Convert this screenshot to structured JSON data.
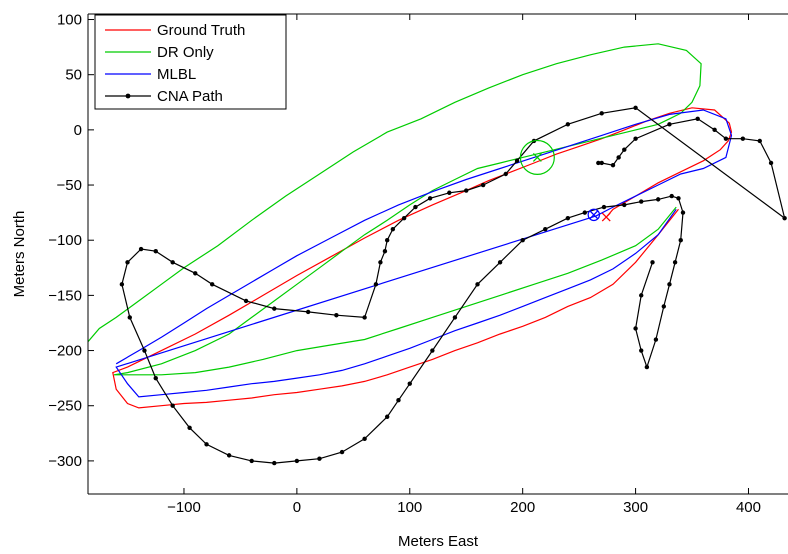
{
  "chart_data": {
    "type": "line",
    "xlabel": "Meters East",
    "ylabel": "Meters North",
    "xlim": [
      -185,
      435
    ],
    "ylim": [
      -330,
      105
    ],
    "xticks": [
      -100,
      0,
      100,
      200,
      300,
      400
    ],
    "xtick_labels": [
      "−100",
      "0",
      "100",
      "200",
      "300",
      "400"
    ],
    "yticks": [
      100,
      50,
      0,
      -50,
      -100,
      -150,
      -200,
      -250,
      -300
    ],
    "ytick_labels": [
      "100",
      "50",
      "0",
      "−50",
      "−100",
      "−150",
      "−200",
      "−250",
      "−300"
    ],
    "grid": false,
    "legend_position": "top-left",
    "series": [
      {
        "name": "Ground Truth",
        "color": "#ff0000",
        "marker": "none",
        "x": [
          275,
          280,
          300,
          320,
          340,
          360,
          375,
          382,
          385,
          383,
          370,
          350,
          330,
          310,
          290,
          270,
          250,
          230,
          210,
          190,
          170,
          150,
          120,
          90,
          60,
          30,
          0,
          -30,
          -60,
          -90,
          -120,
          -150,
          -163,
          -160,
          -150,
          -140,
          -120,
          -100,
          -80,
          -60,
          -40,
          -20,
          0,
          20,
          40,
          60,
          80,
          100,
          120,
          140,
          160,
          180,
          200,
          220,
          240,
          260,
          280,
          300,
          320,
          338
        ],
        "y": [
          -78,
          -72,
          -60,
          -48,
          -38,
          -28,
          -18,
          -10,
          -2,
          6,
          18,
          20,
          15,
          8,
          0,
          -8,
          -15,
          -22,
          -30,
          -38,
          -46,
          -55,
          -68,
          -82,
          -98,
          -115,
          -132,
          -150,
          -168,
          -185,
          -200,
          -215,
          -220,
          -235,
          -248,
          -252,
          -250,
          -248,
          -247,
          -245,
          -243,
          -240,
          -238,
          -235,
          -232,
          -228,
          -222,
          -215,
          -208,
          -200,
          -193,
          -185,
          -178,
          -170,
          -160,
          -152,
          -140,
          -120,
          -95,
          -72
        ]
      },
      {
        "name": "DR Only",
        "color": "#00cc00",
        "marker": "none",
        "x": [
          -185,
          -175,
          -160,
          -140,
          -120,
          -100,
          -70,
          -40,
          -10,
          20,
          50,
          80,
          110,
          140,
          170,
          200,
          230,
          260,
          290,
          320,
          345,
          358,
          357,
          350,
          340,
          330,
          320,
          300,
          280,
          260,
          240,
          220,
          200,
          180,
          160,
          140,
          120,
          100,
          80,
          60,
          40,
          20,
          0,
          -20,
          -40,
          -60,
          -90,
          -120,
          -150,
          -162,
          -150,
          -120,
          -90,
          -60,
          -30,
          0,
          30,
          60,
          90,
          120,
          150,
          180,
          210,
          240,
          270,
          300,
          320,
          336
        ],
        "y": [
          -192,
          -180,
          -170,
          -155,
          -140,
          -125,
          -105,
          -82,
          -60,
          -40,
          -20,
          -2,
          10,
          25,
          38,
          50,
          60,
          68,
          75,
          78,
          72,
          60,
          40,
          25,
          15,
          10,
          5,
          0,
          -5,
          -10,
          -15,
          -20,
          -25,
          -30,
          -35,
          -45,
          -55,
          -68,
          -82,
          -95,
          -110,
          -125,
          -140,
          -155,
          -170,
          -185,
          -200,
          -212,
          -220,
          -222,
          -222,
          -222,
          -220,
          -215,
          -208,
          -200,
          -195,
          -190,
          -180,
          -170,
          -160,
          -150,
          -140,
          -130,
          -118,
          -105,
          -90,
          -70
        ]
      },
      {
        "name": "MLBL",
        "color": "#0000ff",
        "marker": "none",
        "x": [
          -160,
          -140,
          -120,
          -100,
          -80,
          -60,
          -40,
          -20,
          0,
          30,
          60,
          90,
          120,
          150,
          180,
          210,
          240,
          270,
          300,
          330,
          360,
          380,
          385,
          380,
          360,
          340,
          320,
          300,
          280,
          265,
          -160,
          -150,
          -140,
          -120,
          -100,
          -80,
          -60,
          -40,
          -20,
          0,
          20,
          40,
          60,
          80,
          100,
          120,
          140,
          160,
          180,
          200,
          220,
          240,
          260,
          280,
          300,
          320,
          336
        ],
        "y": [
          -212,
          -200,
          -188,
          -175,
          -162,
          -150,
          -138,
          -126,
          -114,
          -98,
          -82,
          -68,
          -56,
          -45,
          -35,
          -25,
          -15,
          -5,
          5,
          14,
          18,
          10,
          -5,
          -25,
          -35,
          -40,
          -50,
          -60,
          -70,
          -78,
          -215,
          -230,
          -242,
          -240,
          -238,
          -236,
          -233,
          -230,
          -228,
          -225,
          -222,
          -218,
          -212,
          -205,
          -198,
          -190,
          -182,
          -175,
          -168,
          -160,
          -152,
          -144,
          -136,
          -126,
          -112,
          -95,
          -72
        ]
      },
      {
        "name": "CNA Path",
        "color": "#000000",
        "marker": "dot",
        "x": [
          267,
          270,
          280,
          285,
          290,
          300,
          330,
          355,
          370,
          380,
          395,
          410,
          420,
          432,
          300,
          270,
          240,
          210,
          195,
          185,
          165,
          150,
          135,
          118,
          105,
          95,
          85,
          80,
          78,
          74,
          70,
          60,
          35,
          10,
          -20,
          -45,
          -75,
          -90,
          -110,
          -125,
          -138,
          -150,
          -155,
          -148,
          -135,
          -125,
          -110,
          -95,
          -80,
          -60,
          -40,
          -20,
          0,
          20,
          40,
          60,
          80,
          90,
          100,
          120,
          140,
          160,
          180,
          200,
          220,
          240,
          255,
          272,
          290,
          305,
          320,
          332,
          338,
          342,
          340,
          335,
          330,
          325,
          318,
          310,
          305,
          300,
          305,
          315
        ],
        "y": [
          -30,
          -30,
          -32,
          -25,
          -18,
          -8,
          5,
          10,
          0,
          -8,
          -8,
          -10,
          -30,
          -80,
          20,
          15,
          5,
          -10,
          -28,
          -40,
          -50,
          -55,
          -57,
          -62,
          -70,
          -80,
          -90,
          -100,
          -110,
          -120,
          -140,
          -170,
          -168,
          -165,
          -162,
          -155,
          -140,
          -130,
          -120,
          -110,
          -108,
          -120,
          -140,
          -170,
          -200,
          -225,
          -250,
          -270,
          -285,
          -295,
          -300,
          -302,
          -300,
          -298,
          -292,
          -280,
          -260,
          -245,
          -230,
          -200,
          -170,
          -140,
          -120,
          -100,
          -90,
          -80,
          -75,
          -70,
          -68,
          -65,
          -63,
          -60,
          -62,
          -75,
          -100,
          -120,
          -140,
          -160,
          -190,
          -215,
          -200,
          -180,
          -150,
          -120
        ]
      }
    ],
    "markers": [
      {
        "name": "DR Only final estimate",
        "x": 213,
        "y": -25,
        "symbol": "circle-x",
        "color": "#00cc00",
        "radius_m": 15
      },
      {
        "name": "MLBL final estimate",
        "x": 263,
        "y": -77,
        "symbol": "circle-x",
        "color": "#0000ff",
        "radius_m": 5
      },
      {
        "name": "Ground Truth final",
        "x": 274,
        "y": -79,
        "symbol": "x",
        "color": "#ff0000"
      }
    ]
  }
}
